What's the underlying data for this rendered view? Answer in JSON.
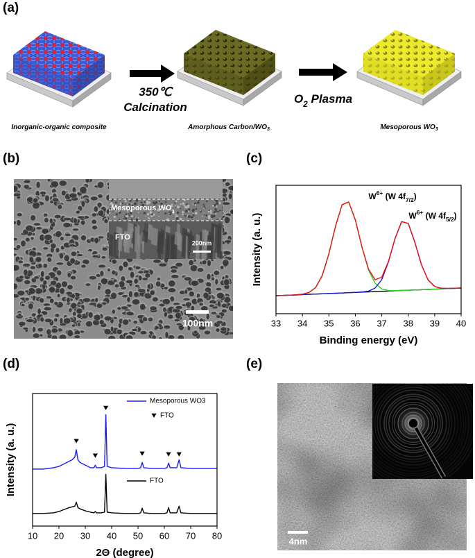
{
  "panel_a": {
    "label": "(a)",
    "stages": [
      [
        {
          "text": "Inorganic-organic composite"
        }
      ],
      [
        {
          "text": "Amorphous Carbon/WO"
        },
        {
          "text": "3",
          "shift": "sub"
        }
      ],
      [
        {
          "text": "Mesoporous WO"
        },
        {
          "text": "3",
          "shift": "sub"
        }
      ]
    ],
    "steps": [
      {
        "lines": [
          [
            {
              "text": "350℃"
            }
          ],
          [
            {
              "text": "Calcination"
            }
          ]
        ]
      },
      {
        "lines": [
          [
            {
              "text": "O"
            },
            {
              "text": "2",
              "shift": "sub"
            },
            {
              "text": " Plasma"
            }
          ]
        ]
      }
    ]
  },
  "panel_b": {
    "label": "(b)",
    "inset_labels": [
      [
        {
          "text": "Mesoporous WO"
        },
        {
          "text": "3",
          "shift": "sub"
        }
      ],
      [
        {
          "text": "FTO"
        }
      ]
    ],
    "inset_scale": "200nm",
    "scale": "100nm"
  },
  "panel_e": {
    "label": "(e)",
    "scale": "4nm"
  },
  "chart_data": [
    {
      "type": "line",
      "panel_label": "(c)",
      "xlabel": "Binding energy (eV)",
      "ylabel": "Intensity (a. u.)",
      "xlim": [
        33,
        40
      ],
      "xticks": [
        33,
        34,
        35,
        36,
        37,
        38,
        39,
        40
      ],
      "ylim": [
        0,
        1
      ],
      "x": [
        33,
        33.25,
        33.5,
        33.75,
        34,
        34.25,
        34.5,
        34.75,
        35,
        35.25,
        35.5,
        35.75,
        36,
        36.25,
        36.5,
        36.75,
        37,
        37.25,
        37.5,
        37.75,
        38,
        38.25,
        38.5,
        38.75,
        39,
        39.25,
        39.5,
        39.75,
        40
      ],
      "series": [
        {
          "color": "#000000",
          "values": [
            0.14,
            0.142,
            0.144,
            0.146,
            0.149,
            0.151,
            0.153,
            0.155,
            0.157,
            0.159,
            0.161,
            0.164,
            0.166,
            0.168,
            0.17,
            0.172,
            0.174,
            0.176,
            0.179,
            0.181,
            0.183,
            0.185,
            0.187,
            0.189,
            0.191,
            0.194,
            0.196,
            0.198,
            0.2
          ]
        },
        {
          "color": "#1fd11f",
          "values": [
            0.14,
            0.142,
            0.144,
            0.147,
            0.152,
            0.165,
            0.204,
            0.298,
            0.467,
            0.682,
            0.849,
            0.87,
            0.73,
            0.519,
            0.34,
            0.236,
            0.193,
            0.18,
            0.18,
            0.181,
            0.183,
            0.185,
            0.187,
            0.189,
            0.191,
            0.194,
            0.196,
            0.198,
            0.2
          ]
        },
        {
          "color": "#1a1adf",
          "values": [
            0.14,
            0.142,
            0.144,
            0.146,
            0.149,
            0.151,
            0.153,
            0.155,
            0.157,
            0.159,
            0.161,
            0.164,
            0.166,
            0.169,
            0.176,
            0.2,
            0.266,
            0.402,
            0.585,
            0.717,
            0.703,
            0.556,
            0.381,
            0.263,
            0.212,
            0.198,
            0.197,
            0.198,
            0.2
          ]
        },
        {
          "color": "#ee1111",
          "values": [
            0.14,
            0.142,
            0.144,
            0.147,
            0.152,
            0.165,
            0.204,
            0.298,
            0.467,
            0.682,
            0.849,
            0.87,
            0.73,
            0.52,
            0.346,
            0.264,
            0.285,
            0.406,
            0.586,
            0.717,
            0.703,
            0.556,
            0.381,
            0.263,
            0.212,
            0.198,
            0.197,
            0.198,
            0.2
          ]
        }
      ],
      "annotations": [
        [
          {
            "text": "W"
          },
          {
            "text": "6+",
            "shift": "super"
          },
          {
            "text": " (W 4f"
          },
          {
            "text": "7/2",
            "shift": "sub"
          },
          {
            "text": ")"
          }
        ],
        [
          {
            "text": "W"
          },
          {
            "text": "6+",
            "shift": "super"
          },
          {
            "text": " (W 4f"
          },
          {
            "text": "5/2",
            "shift": "sub"
          },
          {
            "text": ")"
          }
        ]
      ]
    },
    {
      "type": "line",
      "panel_label": "(d)",
      "xlabel": "2Θ (degree)",
      "ylabel": "Intensity (a. u.)",
      "xlim": [
        10,
        80
      ],
      "xticks": [
        10,
        20,
        30,
        40,
        50,
        60,
        70,
        80
      ],
      "ylim": [
        0,
        1
      ],
      "x": [
        10,
        14,
        18,
        20,
        22,
        24,
        25,
        26,
        26.6,
        27.2,
        28,
        30,
        32,
        33.3,
        33.8,
        34.3,
        36,
        37.3,
        37.8,
        38.3,
        40,
        45,
        50,
        51,
        51.6,
        52.2,
        55,
        60,
        61,
        61.6,
        62.2,
        64.7,
        65.6,
        66.3,
        70,
        75,
        80
      ],
      "series": [
        {
          "name": "Mesoporous WO3",
          "color": "#1a1aff",
          "values": [
            0.43,
            0.43,
            0.44,
            0.45,
            0.47,
            0.49,
            0.5,
            0.52,
            0.576,
            0.5,
            0.48,
            0.46,
            0.44,
            0.44,
            0.46,
            0.44,
            0.44,
            0.45,
            0.84,
            0.45,
            0.44,
            0.435,
            0.435,
            0.44,
            0.48,
            0.44,
            0.435,
            0.435,
            0.44,
            0.475,
            0.44,
            0.44,
            0.5,
            0.44,
            0.435,
            0.435,
            0.435
          ]
        },
        {
          "name": "FTO",
          "color": "#000000",
          "values": [
            0.095,
            0.095,
            0.1,
            0.11,
            0.125,
            0.14,
            0.145,
            0.15,
            0.18,
            0.14,
            0.13,
            0.115,
            0.105,
            0.1,
            0.11,
            0.1,
            0.1,
            0.105,
            0.39,
            0.105,
            0.1,
            0.095,
            0.095,
            0.1,
            0.135,
            0.1,
            0.095,
            0.095,
            0.1,
            0.14,
            0.1,
            0.1,
            0.15,
            0.1,
            0.095,
            0.095,
            0.095
          ]
        }
      ],
      "peak_markers": {
        "name": "FTO",
        "x": [
          26.6,
          33.8,
          37.8,
          51.6,
          61.6,
          65.6
        ],
        "y": [
          0.64,
          0.53,
          0.89,
          0.545,
          0.54,
          0.54
        ]
      }
    }
  ]
}
